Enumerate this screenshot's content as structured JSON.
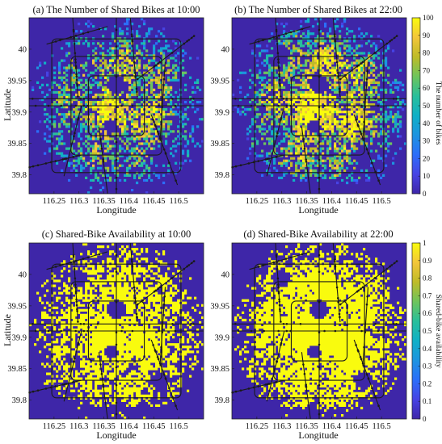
{
  "figure": {
    "xlabel": "Longitude",
    "ylabel": "Latitude",
    "colormap": [
      "#3e26a8",
      "#4743e4",
      "#2c6ef9",
      "#1d94e0",
      "#10b0c6",
      "#29bf9b",
      "#6ec45c",
      "#bebb28",
      "#f3c63a",
      "#f9fb0e"
    ],
    "background_color": "#3e26a8",
    "road_color": "#1a1a1a"
  },
  "chart_data": [
    {
      "type": "heatmap",
      "title": "(a) The Number of Shared Bikes at 10:00",
      "xlabel": "Longitude",
      "ylabel": "Latitude",
      "xlim": [
        116.2,
        116.55
      ],
      "ylim": [
        39.77,
        40.05
      ],
      "xticks": [
        116.25,
        116.3,
        116.35,
        116.4,
        116.45,
        116.5
      ],
      "xticklabels": [
        "116.25",
        "116.3",
        "116.35",
        "116.4",
        "116.45",
        "116.5"
      ],
      "yticks": [
        39.8,
        39.85,
        39.9,
        39.95,
        40.0
      ],
      "yticklabels": [
        "39.8",
        "39.85",
        "39.9",
        "39.95",
        "40"
      ],
      "value_range": [
        0,
        100
      ]
    },
    {
      "type": "heatmap",
      "title": "(b) The Number of Shared Bikes at 22:00",
      "xlabel": "Longitude",
      "ylabel": "",
      "xlim": [
        116.2,
        116.55
      ],
      "ylim": [
        39.77,
        40.05
      ],
      "xticks": [
        116.25,
        116.3,
        116.35,
        116.4,
        116.45,
        116.5
      ],
      "xticklabels": [
        "116.25",
        "116.3",
        "116.35",
        "116.4",
        "116.45",
        "116.5"
      ],
      "yticks": [
        39.8,
        39.85,
        39.9,
        39.95,
        40.0
      ],
      "yticklabels": [
        "39.8",
        "39.85",
        "39.9",
        "39.95",
        "40"
      ],
      "value_range": [
        0,
        100
      ],
      "colorbar": {
        "label": "The number of bikes",
        "ticks": [
          0,
          10,
          20,
          30,
          40,
          50,
          60,
          70,
          80,
          90,
          100
        ],
        "ticklabels": [
          "0",
          "10",
          "20",
          "30",
          "40",
          "50",
          "60",
          "70",
          "80",
          "90",
          "100"
        ]
      }
    },
    {
      "type": "heatmap",
      "title": "(c) Shared-Bike Availability at 10:00",
      "xlabel": "Longitude",
      "ylabel": "Latitude",
      "xlim": [
        116.2,
        116.55
      ],
      "ylim": [
        39.77,
        40.05
      ],
      "xticks": [
        116.25,
        116.3,
        116.35,
        116.4,
        116.45,
        116.5
      ],
      "xticklabels": [
        "116.25",
        "116.3",
        "116.35",
        "116.4",
        "116.45",
        "116.5"
      ],
      "yticks": [
        39.8,
        39.85,
        39.9,
        39.95,
        40.0
      ],
      "yticklabels": [
        "39.8",
        "39.85",
        "39.9",
        "39.95",
        "40"
      ],
      "value_range": [
        0,
        1
      ]
    },
    {
      "type": "heatmap",
      "title": "(d) Shared-Bike Availability at 22:00",
      "xlabel": "Longitude",
      "ylabel": "",
      "xlim": [
        116.2,
        116.55
      ],
      "ylim": [
        39.77,
        40.05
      ],
      "xticks": [
        116.25,
        116.3,
        116.35,
        116.4,
        116.45,
        116.5
      ],
      "xticklabels": [
        "116.25",
        "116.3",
        "116.35",
        "116.4",
        "116.45",
        "116.5"
      ],
      "yticks": [
        39.8,
        39.85,
        39.9,
        39.95,
        40.0
      ],
      "yticklabels": [
        "39.8",
        "39.85",
        "39.9",
        "39.95",
        "40"
      ],
      "value_range": [
        0,
        1
      ],
      "colorbar": {
        "label": "Shared-bike availability",
        "ticks": [
          0,
          0.1,
          0.2,
          0.3,
          0.4,
          0.5,
          0.6,
          0.7,
          0.8,
          0.9,
          1
        ],
        "ticklabels": [
          "0",
          "0.1",
          "0.2",
          "0.3",
          "0.4",
          "0.5",
          "0.6",
          "0.7",
          "0.8",
          "0.9",
          "1"
        ]
      }
    }
  ]
}
